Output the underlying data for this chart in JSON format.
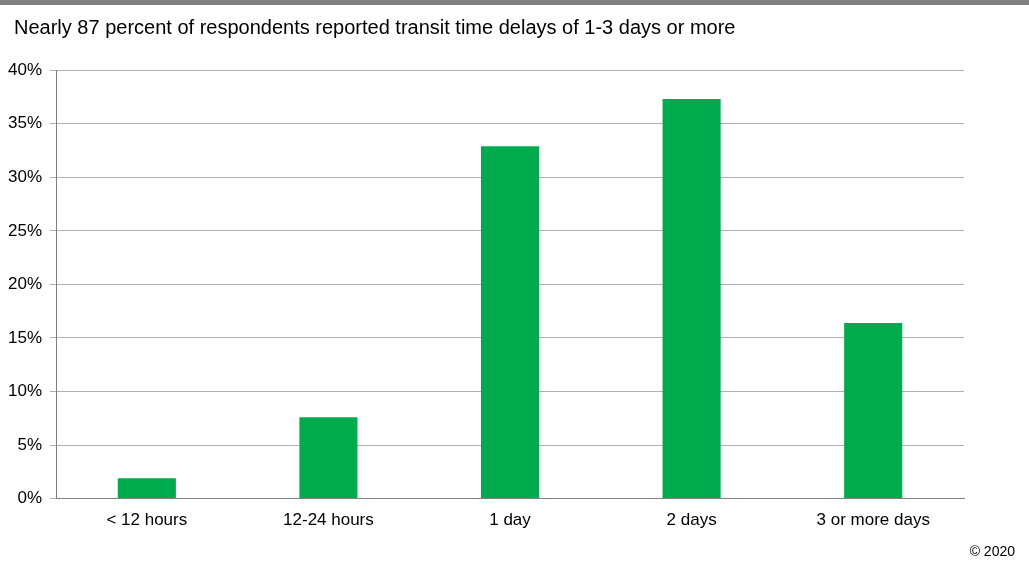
{
  "chart_data": {
    "type": "bar",
    "title": "Nearly 87 percent of respondents reported transit time delays of 1-3 days or more",
    "categories": [
      "< 12 hours",
      "12-24 hours",
      "1 day",
      "2 days",
      "3 or more days"
    ],
    "values": [
      1.9,
      7.6,
      32.9,
      37.3,
      16.4
    ],
    "color": "#00ab4e",
    "ylim": [
      0,
      40
    ],
    "yticks": [
      {
        "value": 0,
        "label": "0%"
      },
      {
        "value": 5,
        "label": "5%"
      },
      {
        "value": 10,
        "label": "10%"
      },
      {
        "value": 15,
        "label": "15%"
      },
      {
        "value": 20,
        "label": "20%"
      },
      {
        "value": 25,
        "label": "25%"
      },
      {
        "value": 30,
        "label": "30%"
      },
      {
        "value": 35,
        "label": "35%"
      },
      {
        "value": 40,
        "label": "40%"
      }
    ],
    "grid": "y",
    "legend": false,
    "annotations": [
      "© 2020"
    ]
  }
}
